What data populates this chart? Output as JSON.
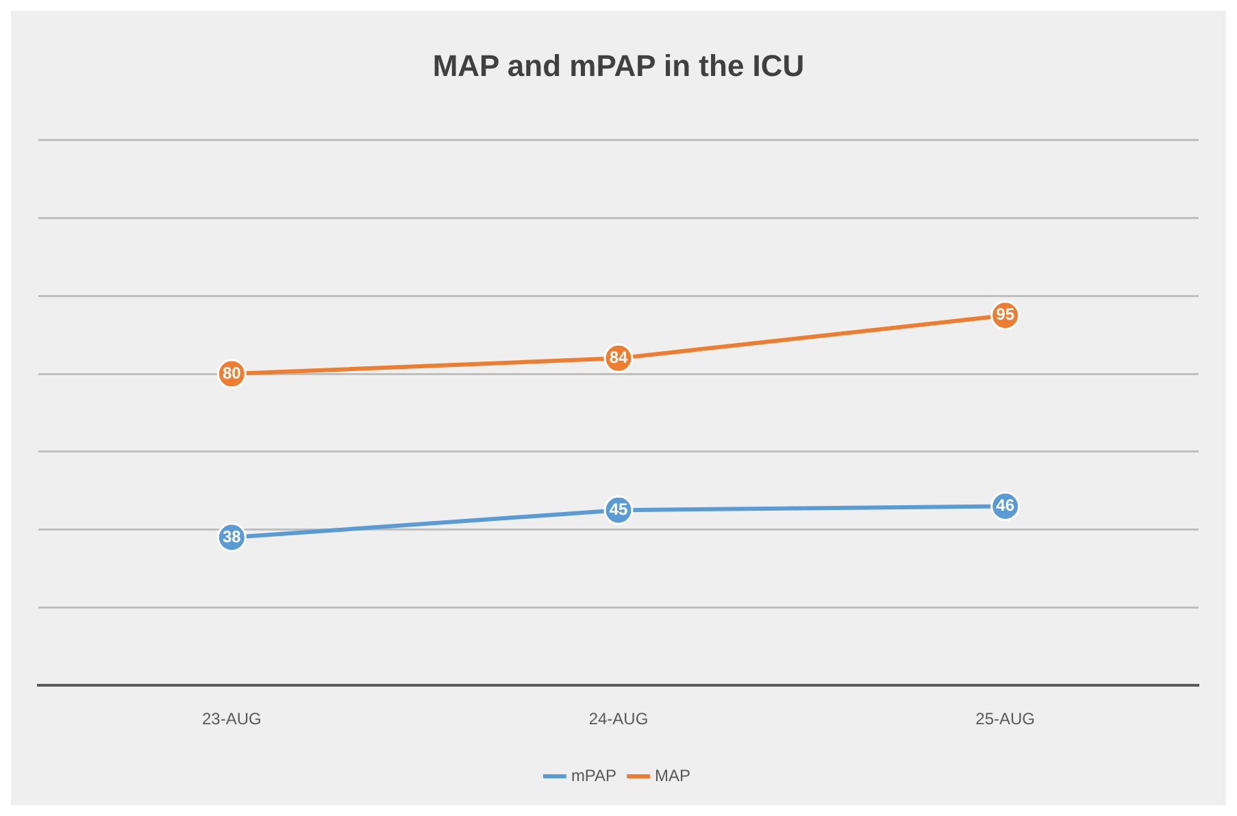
{
  "chart_data": {
    "type": "line",
    "title": "MAP and mPAP in the ICU",
    "categories": [
      "23-AUG",
      "24-AUG",
      "25-AUG"
    ],
    "series": [
      {
        "name": "mPAP",
        "color": "#5b9bd5",
        "values": [
          38,
          45,
          46
        ]
      },
      {
        "name": "MAP",
        "color": "#ed7d31",
        "values": [
          80,
          84,
          95
        ]
      }
    ],
    "ylim": [
      0,
      140
    ],
    "yticks": [
      {
        "value": 0,
        "label": null
      },
      {
        "value": 20,
        "label": null
      },
      {
        "value": 40,
        "label": null
      },
      {
        "value": 60,
        "label": null
      },
      {
        "value": 80,
        "label": null
      },
      {
        "value": 100,
        "label": null
      },
      {
        "value": 120,
        "label": null
      },
      {
        "value": 140,
        "label": null
      }
    ],
    "grid": "y",
    "legend": "bottom",
    "marker": "circle",
    "data_labels": true,
    "tick_labels": "x"
  }
}
